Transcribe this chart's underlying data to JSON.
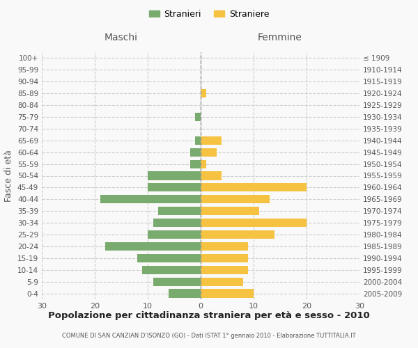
{
  "age_groups": [
    "100+",
    "95-99",
    "90-94",
    "85-89",
    "80-84",
    "75-79",
    "70-74",
    "65-69",
    "60-64",
    "55-59",
    "50-54",
    "45-49",
    "40-44",
    "35-39",
    "30-34",
    "25-29",
    "20-24",
    "15-19",
    "10-14",
    "5-9",
    "0-4"
  ],
  "birth_years": [
    "≤ 1909",
    "1910-1914",
    "1915-1919",
    "1920-1924",
    "1925-1929",
    "1930-1934",
    "1935-1939",
    "1940-1944",
    "1945-1949",
    "1950-1954",
    "1955-1959",
    "1960-1964",
    "1965-1969",
    "1970-1974",
    "1975-1979",
    "1980-1984",
    "1985-1989",
    "1990-1994",
    "1995-1999",
    "2000-2004",
    "2005-2009"
  ],
  "males": [
    0,
    0,
    0,
    0,
    0,
    1,
    0,
    1,
    2,
    2,
    10,
    10,
    19,
    8,
    9,
    10,
    18,
    12,
    11,
    9,
    6
  ],
  "females": [
    0,
    0,
    0,
    1,
    0,
    0,
    0,
    4,
    3,
    1,
    4,
    20,
    13,
    11,
    20,
    14,
    9,
    9,
    9,
    8,
    10
  ],
  "male_color": "#7aab6e",
  "female_color": "#f5c242",
  "background_color": "#f9f9f9",
  "grid_color": "#cccccc",
  "title": "Popolazione per cittadinanza straniera per età e sesso - 2010",
  "subtitle": "COMUNE DI SAN CANZIAN D’ISONZO (GO) - Dati ISTAT 1° gennaio 2010 - Elaborazione TUTTITALIA.IT",
  "xlabel_left": "Maschi",
  "xlabel_right": "Femmine",
  "ylabel_left": "Fasce di età",
  "xlim": 30,
  "legend_male": "Stranieri",
  "legend_female": "Straniere"
}
